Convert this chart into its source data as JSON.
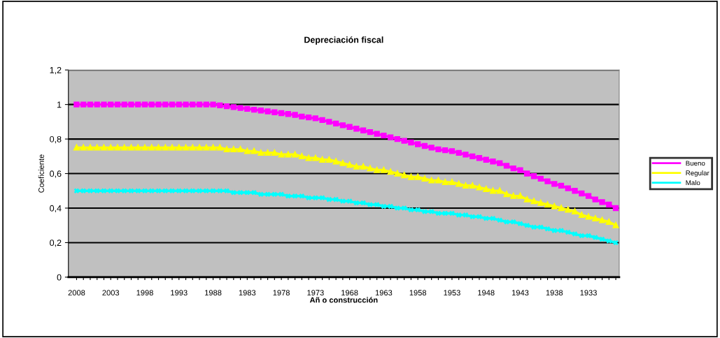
{
  "chart_data": {
    "type": "line",
    "title": "Depreciación fiscal",
    "xlabel": "Añ o construcción",
    "ylabel": "Coeficiente",
    "categories": [
      "2008",
      null,
      null,
      null,
      null,
      "2003",
      null,
      null,
      null,
      null,
      "1998",
      null,
      null,
      null,
      null,
      "1993",
      null,
      null,
      null,
      null,
      "1988",
      null,
      null,
      null,
      null,
      "1983",
      null,
      null,
      null,
      null,
      "1978",
      null,
      null,
      null,
      null,
      "1973",
      null,
      null,
      null,
      null,
      "1968",
      null,
      null,
      null,
      null,
      "1963",
      null,
      null,
      null,
      null,
      "1958",
      null,
      null,
      null,
      null,
      "1953",
      null,
      null,
      null,
      null,
      "1948",
      null,
      null,
      null,
      null,
      "1943",
      null,
      null,
      null,
      null,
      "1938",
      null,
      null,
      null,
      null,
      "1933",
      null,
      null,
      null,
      null
    ],
    "series": [
      {
        "name": "Bueno",
        "color": "#ff00ff",
        "marker": "square",
        "values": [
          1,
          1,
          1,
          1,
          1,
          1,
          1,
          1,
          1,
          1,
          1,
          1,
          1,
          1,
          1,
          1,
          1,
          1,
          1,
          1,
          1.0,
          0.995,
          0.99,
          0.985,
          0.98,
          0.975,
          0.97,
          0.965,
          0.96,
          0.955,
          0.95,
          0.945,
          0.94,
          0.93,
          0.925,
          0.92,
          0.91,
          0.9,
          0.89,
          0.88,
          0.87,
          0.86,
          0.85,
          0.84,
          0.83,
          0.82,
          0.81,
          0.8,
          0.79,
          0.78,
          0.77,
          0.76,
          0.75,
          0.74,
          0.735,
          0.73,
          0.72,
          0.71,
          0.7,
          0.69,
          0.68,
          0.67,
          0.66,
          0.645,
          0.63,
          0.62,
          0.6,
          0.585,
          0.57,
          0.555,
          0.54,
          0.53,
          0.515,
          0.5,
          0.485,
          0.47,
          0.45,
          0.435,
          0.42,
          0.4
        ]
      },
      {
        "name": "Regular",
        "color": "#ffff00",
        "marker": "triangle",
        "values": [
          0.75,
          0.75,
          0.75,
          0.75,
          0.75,
          0.75,
          0.75,
          0.75,
          0.75,
          0.75,
          0.75,
          0.75,
          0.75,
          0.75,
          0.75,
          0.75,
          0.75,
          0.75,
          0.75,
          0.75,
          0.75,
          0.75,
          0.74,
          0.74,
          0.74,
          0.73,
          0.73,
          0.72,
          0.72,
          0.72,
          0.71,
          0.71,
          0.71,
          0.7,
          0.69,
          0.69,
          0.68,
          0.68,
          0.67,
          0.66,
          0.65,
          0.64,
          0.64,
          0.63,
          0.62,
          0.62,
          0.61,
          0.6,
          0.59,
          0.58,
          0.58,
          0.57,
          0.56,
          0.56,
          0.55,
          0.55,
          0.54,
          0.53,
          0.53,
          0.52,
          0.51,
          0.5,
          0.5,
          0.48,
          0.47,
          0.47,
          0.45,
          0.44,
          0.43,
          0.42,
          0.41,
          0.4,
          0.39,
          0.38,
          0.36,
          0.35,
          0.34,
          0.33,
          0.32,
          0.3
        ]
      },
      {
        "name": "Malo",
        "color": "#00ffff",
        "marker": "cross",
        "values": [
          0.5,
          0.5,
          0.5,
          0.5,
          0.5,
          0.5,
          0.5,
          0.5,
          0.5,
          0.5,
          0.5,
          0.5,
          0.5,
          0.5,
          0.5,
          0.5,
          0.5,
          0.5,
          0.5,
          0.5,
          0.5,
          0.5,
          0.5,
          0.49,
          0.49,
          0.49,
          0.49,
          0.48,
          0.48,
          0.48,
          0.48,
          0.47,
          0.47,
          0.47,
          0.46,
          0.46,
          0.46,
          0.45,
          0.45,
          0.44,
          0.44,
          0.43,
          0.43,
          0.42,
          0.42,
          0.41,
          0.41,
          0.4,
          0.4,
          0.39,
          0.39,
          0.38,
          0.38,
          0.37,
          0.37,
          0.37,
          0.36,
          0.36,
          0.35,
          0.35,
          0.34,
          0.34,
          0.33,
          0.32,
          0.32,
          0.31,
          0.3,
          0.29,
          0.29,
          0.28,
          0.27,
          0.27,
          0.26,
          0.25,
          0.24,
          0.24,
          0.23,
          0.22,
          0.21,
          0.2
        ]
      }
    ],
    "ylim": [
      0,
      1.2
    ],
    "yticks": [
      0,
      {
        "value": 0.2,
        "label": "0,2"
      },
      {
        "value": 0.4,
        "label": "0,4"
      },
      {
        "value": 0.6,
        "label": "0,6"
      },
      {
        "value": 0.8,
        "label": "0,8"
      },
      1,
      {
        "value": 1.2,
        "label": "1,2"
      }
    ],
    "grid": "y",
    "legend": "right"
  }
}
